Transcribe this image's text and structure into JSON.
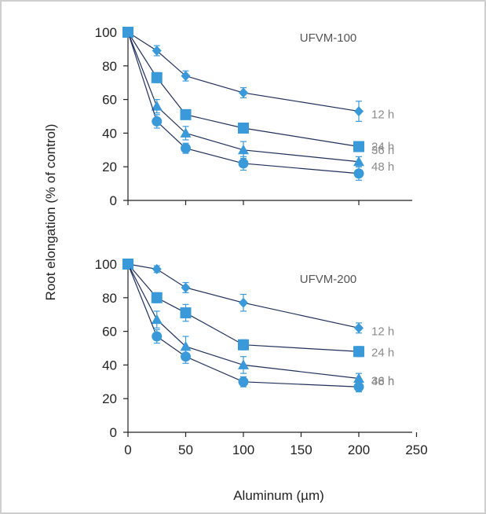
{
  "chart_data": {
    "type": "line",
    "xlabel": "Aluminum (µm)",
    "ylabel": "Root elongation (% of control)",
    "colors": {
      "marker": "#3a9ad9",
      "line": "#1f2f5a",
      "axis": "#222222",
      "frame": "#cfcfcf"
    },
    "panels": [
      {
        "title": "UFVM-100",
        "xlim": [
          0,
          200
        ],
        "ylim": [
          0,
          100
        ],
        "x_ticks": [
          0,
          50,
          100,
          200
        ],
        "y_ticks": [
          0,
          20,
          40,
          60,
          80,
          100
        ],
        "x_tick_labels": [],
        "y_tick_labels": [
          "0",
          "20",
          "40",
          "60",
          "80",
          "100"
        ],
        "series": [
          {
            "name": "12 h",
            "marker": "diamond",
            "x": [
              0,
              25,
              50,
              100,
              200
            ],
            "y": [
              100,
              89,
              74,
              64,
              53
            ],
            "err": [
              0,
              3,
              3,
              3,
              6
            ]
          },
          {
            "name": "24 h",
            "marker": "square",
            "x": [
              0,
              25,
              50,
              100,
              200
            ],
            "y": [
              100,
              73,
              51,
              43,
              32
            ],
            "err": [
              0,
              3,
              2,
              3,
              3
            ]
          },
          {
            "name": "36 h",
            "marker": "triangle",
            "x": [
              0,
              25,
              50,
              100,
              200
            ],
            "y": [
              100,
              56,
              40,
              30,
              23
            ],
            "err": [
              0,
              4,
              4,
              5,
              3
            ]
          },
          {
            "name": "48 h",
            "marker": "circle",
            "x": [
              0,
              25,
              50,
              100,
              200
            ],
            "y": [
              100,
              47,
              31,
              22,
              16
            ],
            "err": [
              0,
              4,
              3,
              4,
              4
            ]
          }
        ]
      },
      {
        "title": "UFVM-200",
        "xlim": [
          0,
          250
        ],
        "ylim": [
          0,
          100
        ],
        "x_ticks": [
          0,
          50,
          100,
          150,
          200,
          250
        ],
        "y_ticks": [
          0,
          20,
          40,
          60,
          80,
          100
        ],
        "x_tick_labels": [
          "0",
          "50",
          "100",
          "150",
          "200",
          "250"
        ],
        "y_tick_labels": [
          "0",
          "20",
          "40",
          "60",
          "80",
          "100"
        ],
        "series": [
          {
            "name": "12 h",
            "marker": "diamond",
            "x": [
              0,
              25,
              50,
              100,
              200
            ],
            "y": [
              100,
              97,
              86,
              77,
              62
            ],
            "err": [
              0,
              2,
              3,
              5,
              3
            ]
          },
          {
            "name": "24 h",
            "marker": "square",
            "x": [
              0,
              25,
              50,
              100,
              200
            ],
            "y": [
              100,
              80,
              71,
              52,
              48
            ],
            "err": [
              0,
              3,
              5,
              3,
              3
            ]
          },
          {
            "name": "36 h",
            "marker": "triangle",
            "x": [
              0,
              25,
              50,
              100,
              200
            ],
            "y": [
              100,
              67,
              51,
              40,
              32
            ],
            "err": [
              0,
              5,
              6,
              5,
              3
            ]
          },
          {
            "name": "48 h",
            "marker": "circle",
            "x": [
              0,
              25,
              50,
              100,
              200
            ],
            "y": [
              100,
              57,
              45,
              30,
              27
            ],
            "err": [
              0,
              4,
              4,
              3,
              3
            ]
          }
        ]
      }
    ]
  }
}
